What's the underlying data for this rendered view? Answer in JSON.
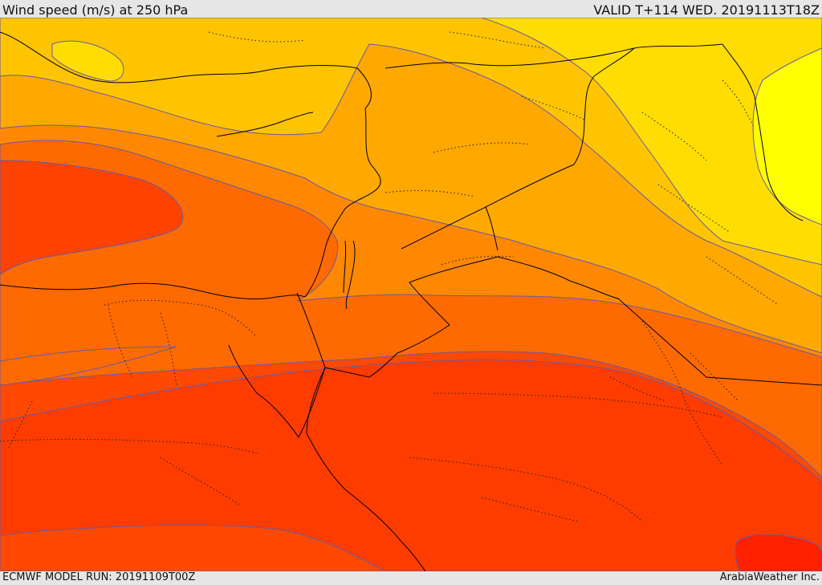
{
  "header": {
    "title": "Wind speed (m/s) at 250 hPa",
    "valid": "VALID T+114 WED. 20191113T18Z"
  },
  "footer": {
    "model_run": "ECMWF MODEL RUN: 20191109T00Z",
    "credit": "ArabiaWeather Inc."
  },
  "legend_colors": {
    "band_1": "#ffff00",
    "band_2": "#ffdd00",
    "band_3": "#ffc400",
    "band_4": "#ffa800",
    "band_5": "#ff8800",
    "band_6": "#ff6a00",
    "band_7": "#ff4800",
    "band_8": "#ff3800",
    "band_9": "#ff2000",
    "contour_line": "#6a5aa0",
    "border_line": "#000000"
  }
}
